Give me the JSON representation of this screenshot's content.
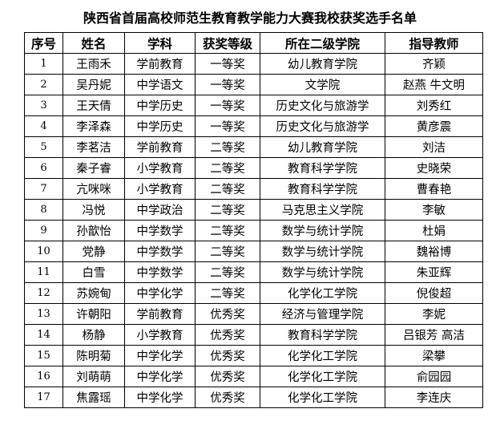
{
  "title": "陕西省首届高校师范生教育教学能力大赛我校获奖选手名单",
  "headers": [
    "序号",
    "姓名",
    "学科",
    "获奖等级",
    "所在二级学院",
    "指导教师"
  ],
  "rows": [
    [
      "1",
      "王雨禾",
      "学前教育",
      "一等奖",
      "幼儿教育学院",
      "齐颖"
    ],
    [
      "2",
      "吴丹妮",
      "中学语文",
      "一等奖",
      "文学院",
      "赵燕  牛文明"
    ],
    [
      "3",
      "王天倩",
      "中学历史",
      "一等奖",
      "历史文化与旅游学",
      "刘秀红"
    ],
    [
      "4",
      "李泽森",
      "中学历史",
      "一等奖",
      "历史文化与旅游学",
      "黄彦震"
    ],
    [
      "5",
      "李茗洁",
      "学前教育",
      "二等奖",
      "幼儿教育学院",
      "刘洁"
    ],
    [
      "6",
      "秦子睿",
      "小学教育",
      "二等奖",
      "教育科学学院",
      "史晓荣"
    ],
    [
      "7",
      "亢咪咪",
      "小学教育",
      "二等奖",
      "教育科学学院",
      "曹春艳"
    ],
    [
      "8",
      "冯悦",
      "中学政治",
      "二等奖",
      "马克思主义学院",
      "李敏"
    ],
    [
      "9",
      "孙歆怡",
      "中学数学",
      "二等奖",
      "数学与统计学院",
      "杜娟"
    ],
    [
      "10",
      "党静",
      "中学数学",
      "二等奖",
      "数学与统计学院",
      "魏裕博"
    ],
    [
      "11",
      "白雪",
      "中学数学",
      "二等奖",
      "数学与统计学院",
      "朱亚辉"
    ],
    [
      "12",
      "苏婉甸",
      "中学化学",
      "二等奖",
      "化学化工学院",
      "倪俊超"
    ],
    [
      "13",
      "许朝阳",
      "学前教育",
      "优秀奖",
      "经济与管理学院",
      "李妮"
    ],
    [
      "14",
      "杨静",
      "小学教育",
      "优秀奖",
      "教育科学学院",
      "吕银芳  高洁"
    ],
    [
      "15",
      "陈明菊",
      "中学化学",
      "优秀奖",
      "化学化工学院",
      "梁攀"
    ],
    [
      "16",
      "刘萌萌",
      "中学化学",
      "优秀奖",
      "化学化工学院",
      "俞园园"
    ],
    [
      "17",
      "焦露瑶",
      "中学化学",
      "优秀奖",
      "化学化工学院",
      "李连庆"
    ]
  ]
}
